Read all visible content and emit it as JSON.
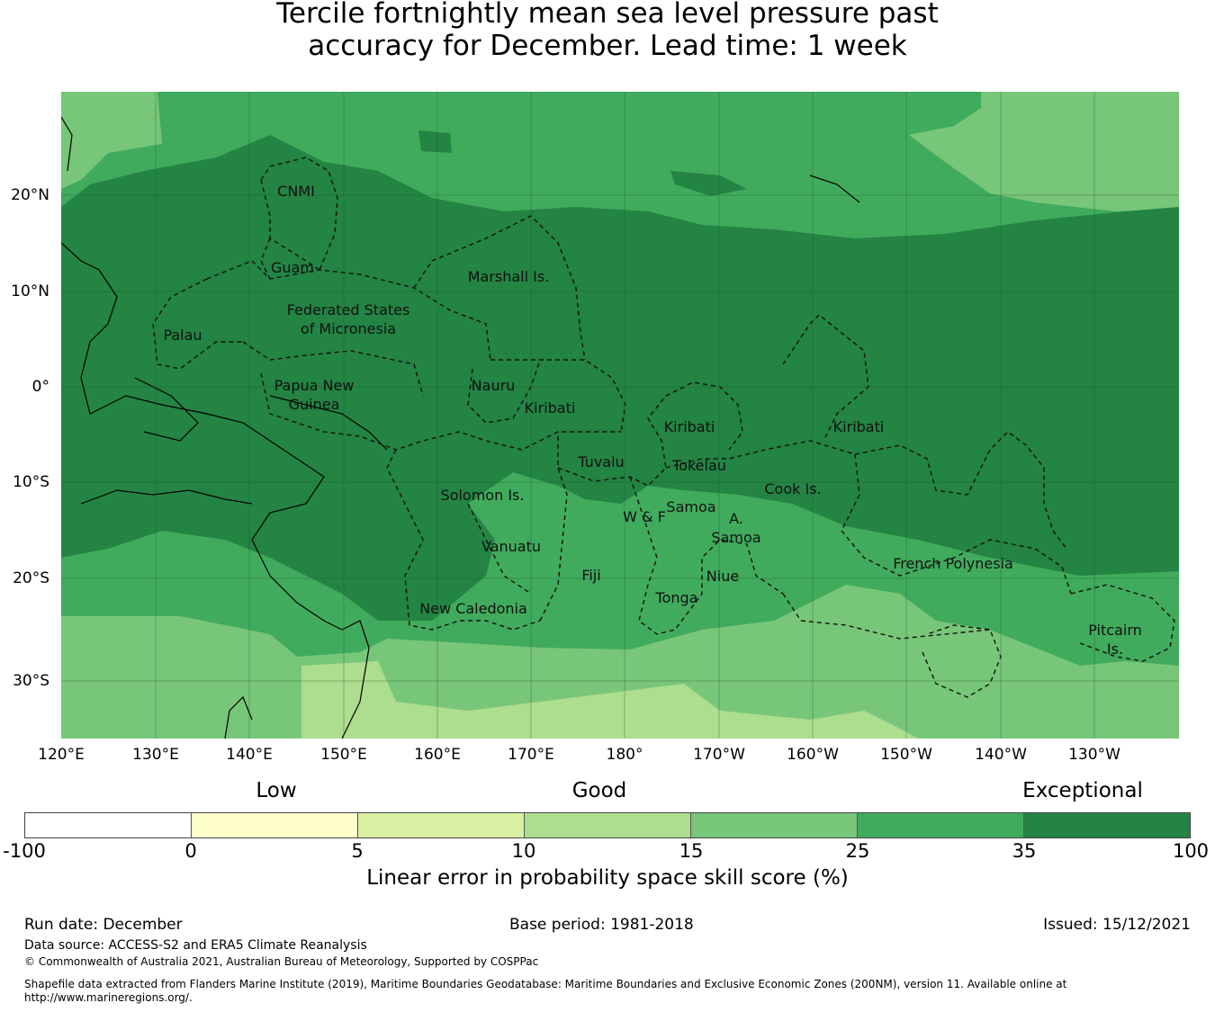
{
  "title": {
    "line1": "Tercile fortnightly mean sea level pressure past",
    "line2": "accuracy for December. Lead time: 1 week"
  },
  "map": {
    "lon_ticks": [
      "120°E",
      "130°E",
      "140°E",
      "150°E",
      "160°E",
      "170°E",
      "180°",
      "170°W",
      "160°W",
      "150°W",
      "140°W",
      "130°W"
    ],
    "lat_ticks": [
      "20°N",
      "10°N",
      "0°",
      "10°S",
      "20°S",
      "30°S"
    ],
    "regions": [
      {
        "label": "CNMI"
      },
      {
        "label": "Guam"
      },
      {
        "label": "Marshall Is."
      },
      {
        "label": "Federated States"
      },
      {
        "label": "of Micronesia"
      },
      {
        "label": "Palau"
      },
      {
        "label": "Papua New"
      },
      {
        "label": "Guinea"
      },
      {
        "label": "Nauru"
      },
      {
        "label": "Kiribati"
      },
      {
        "label": "Kiribati"
      },
      {
        "label": "Kiribati"
      },
      {
        "label": "Tuvalu"
      },
      {
        "label": "Tokelau"
      },
      {
        "label": "Solomon Is."
      },
      {
        "label": "Samoa"
      },
      {
        "label": "W & F"
      },
      {
        "label": "A."
      },
      {
        "label": "Samoa"
      },
      {
        "label": "Cook Is."
      },
      {
        "label": "Vanuatu"
      },
      {
        "label": "Fiji"
      },
      {
        "label": "Niue"
      },
      {
        "label": "Tonga"
      },
      {
        "label": "French Polynesia"
      },
      {
        "label": "New Caledonia"
      },
      {
        "label": "Pitcairn"
      },
      {
        "label": "Is."
      }
    ]
  },
  "legend": {
    "categories": [
      "Low",
      "Good",
      "Exceptional"
    ],
    "ticks": [
      "-100",
      "0",
      "5",
      "10",
      "15",
      "25",
      "35",
      "100"
    ],
    "colors": [
      "#ffffff",
      "#ffffcc",
      "#d9f0a3",
      "#addd8e",
      "#78c679",
      "#41ab5d",
      "#238443"
    ],
    "title": "Linear error in probability space skill score (%)"
  },
  "footer": {
    "run_date": "Run date: December",
    "base_period": "Base period: 1981-2018",
    "issued": "Issued: 15/12/2021",
    "data_source": "Data source: ACCESS-S2 and ERA5 Climate Reanalysis",
    "copyright": "© Commonwealth of Australia 2021, Australian Bureau of Meteorology, Supported by COSPPac",
    "shapefile_line1": "Shapefile data extracted from Flanders Marine Institute (2019), Maritime Boundaries Geodatabase: Maritime Boundaries and Exclusive Economic Zones (200NM), version 11. Available online at",
    "shapefile_line2": "http://www.marineregions.org/."
  }
}
